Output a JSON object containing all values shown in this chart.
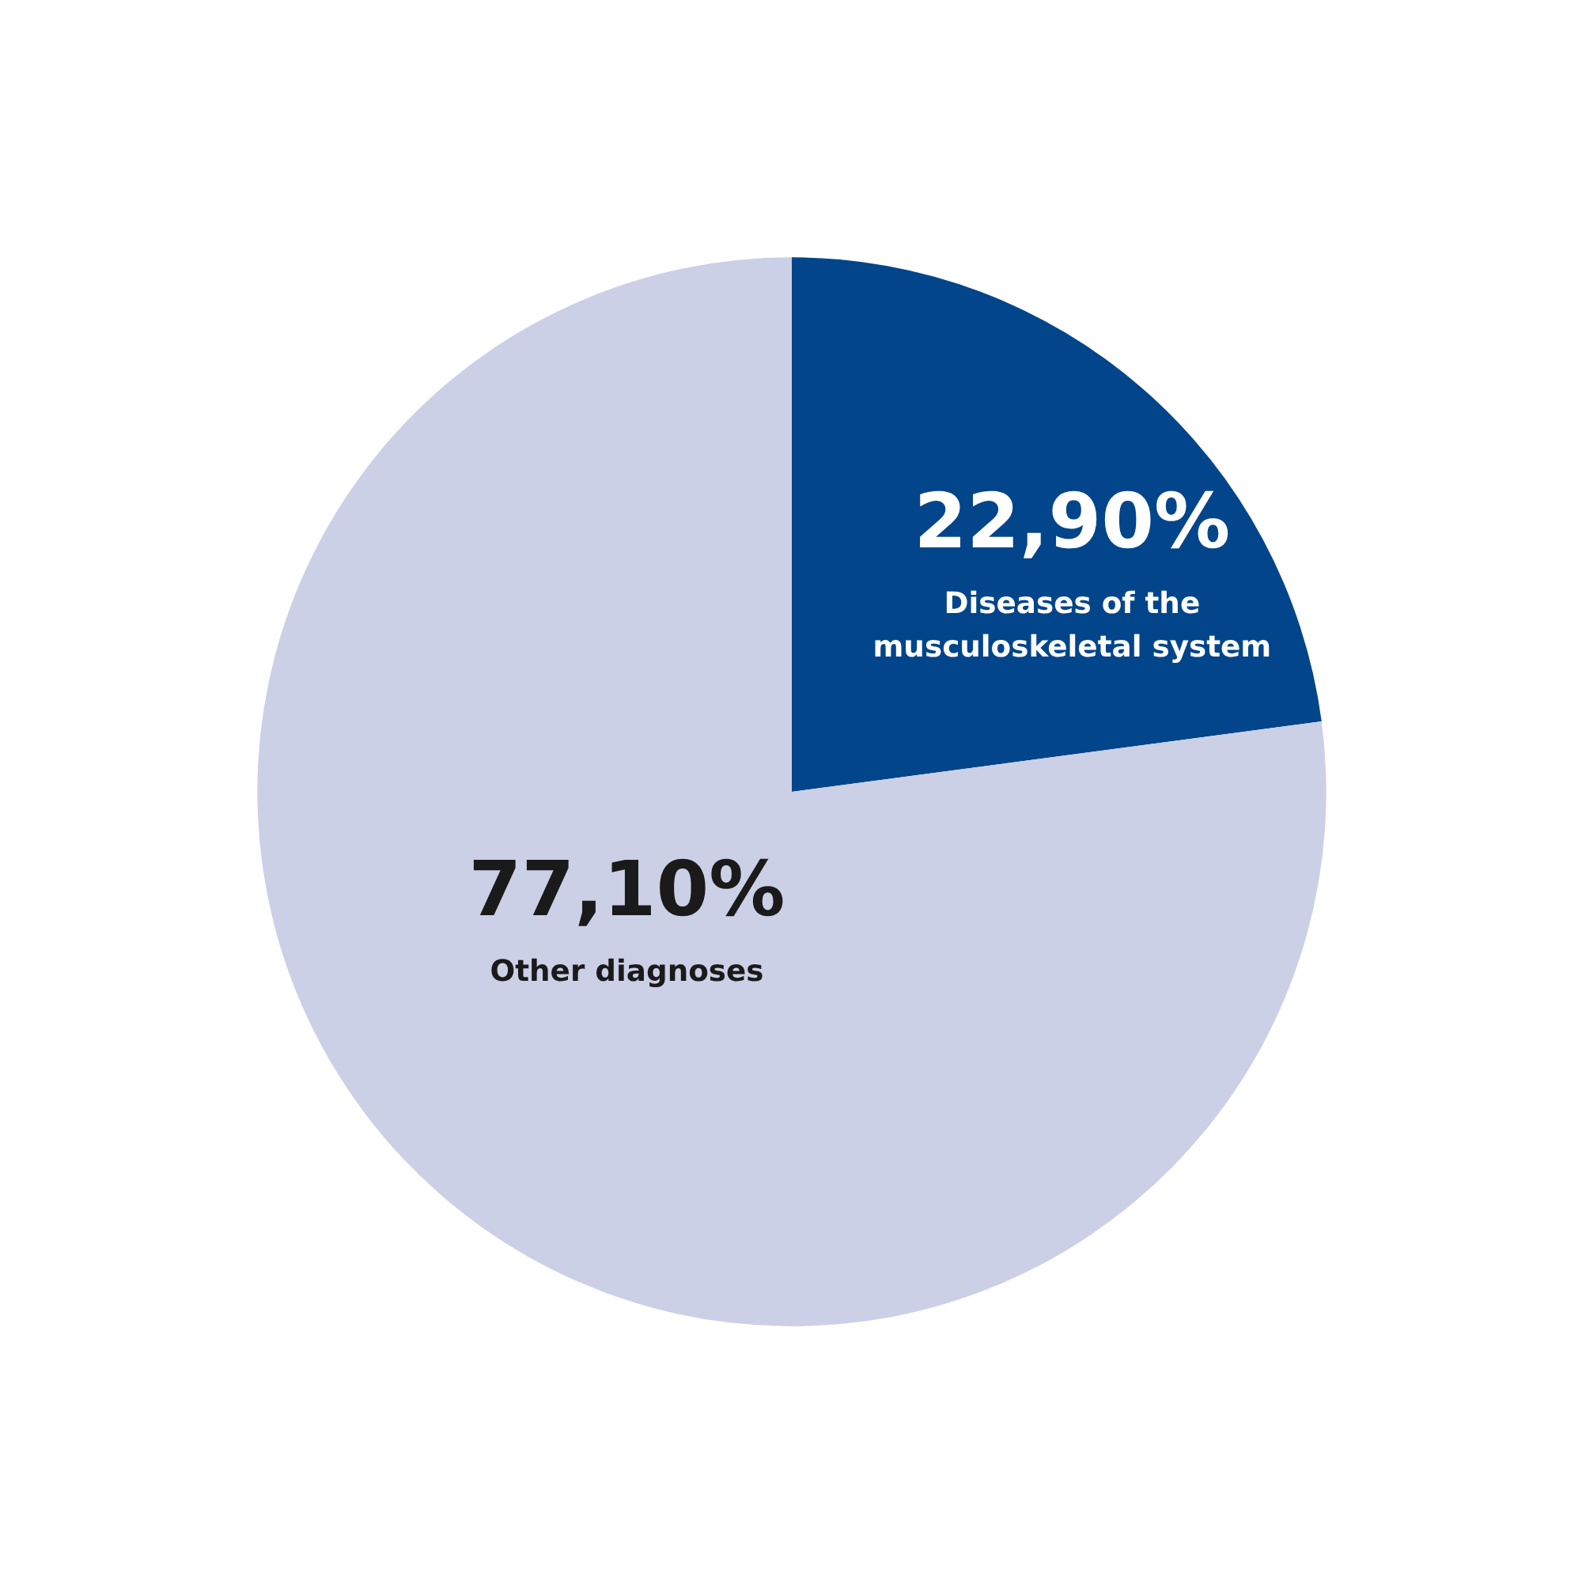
{
  "chart_data": {
    "type": "pie",
    "categories": [
      "Diseases of the musculoskeletal system",
      "Other diagnoses"
    ],
    "values": [
      22.9,
      77.1
    ],
    "colors": [
      "#03458a",
      "#ccd0e6"
    ],
    "value_labels": [
      "22,90%",
      "77,10%"
    ]
  }
}
